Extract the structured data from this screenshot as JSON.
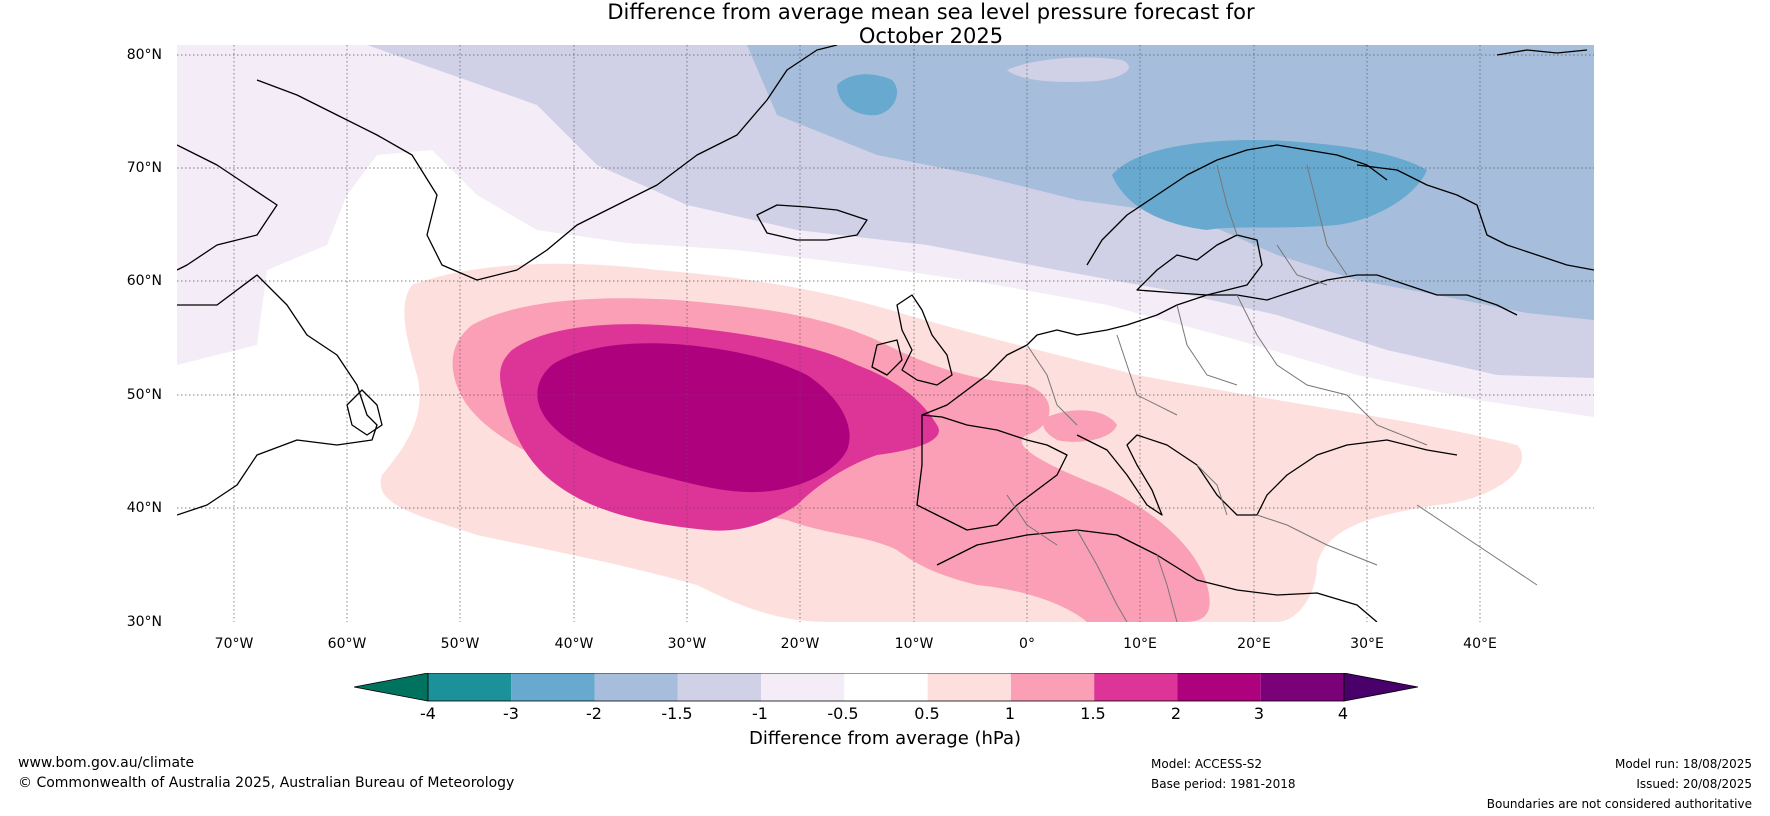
{
  "title": {
    "line1": "Difference from average mean sea level pressure forecast for",
    "line2": "October 2025"
  },
  "map": {
    "latitude_labels": [
      "80°N",
      "70°N",
      "60°N",
      "50°N",
      "40°N",
      "30°N"
    ],
    "longitude_labels": [
      "70°W",
      "60°W",
      "50°W",
      "40°W",
      "30°W",
      "20°W",
      "10°W",
      "0°",
      "10°E",
      "20°E",
      "30°E",
      "40°E"
    ]
  },
  "legend": {
    "title": "Difference from average (hPa)",
    "ticks": [
      "-4",
      "-3",
      "-2",
      "-1.5",
      "-1",
      "-0.5",
      "0.5",
      "1",
      "1.5",
      "2",
      "3",
      "4"
    ],
    "colors": [
      "#00735f",
      "#1c9199",
      "#68a9cf",
      "#a6bddb",
      "#d0d1e6",
      "#f4ecf6",
      "#ffffff",
      "#fde0dd",
      "#fa9fb5",
      "#dd3497",
      "#ae017e",
      "#7a0177",
      "#49006a"
    ]
  },
  "footer": {
    "website": "www.bom.gov.au/climate",
    "copyright": "© Commonwealth of Australia 2025, Australian Bureau of Meteorology",
    "model": "Model: ACCESS-S2",
    "base_period": "Base period: 1981-2018",
    "model_run": "Model run: 18/08/2025",
    "issued": "Issued: 20/08/2025",
    "disclaimer": "Boundaries are not considered authoritative"
  }
}
